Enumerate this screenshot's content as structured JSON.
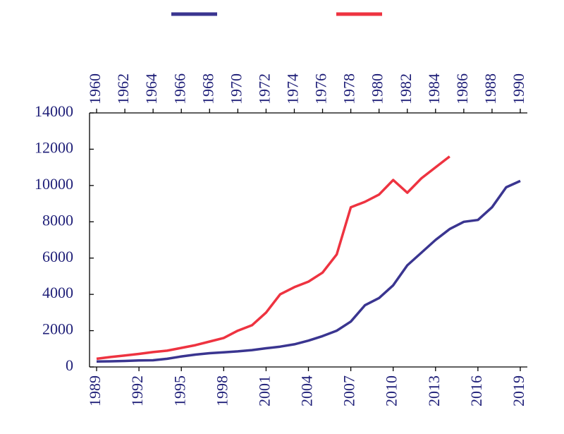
{
  "chart_data": {
    "type": "line",
    "xlim": [
      1988.5,
      2019.5
    ],
    "xticks": [
      1989,
      1992,
      1995,
      1998,
      2001,
      2004,
      2007,
      2010,
      2013,
      2016,
      2019
    ],
    "x2lim": [
      1959.5,
      1990.5
    ],
    "x2ticks": [
      1960,
      1962,
      1964,
      1966,
      1968,
      1970,
      1972,
      1974,
      1976,
      1978,
      1980,
      1982,
      1984,
      1986,
      1988,
      1990
    ],
    "ylim": [
      0,
      14000
    ],
    "yticks": [
      0,
      2000,
      4000,
      6000,
      8000,
      10000,
      12000,
      14000
    ],
    "series": [
      {
        "color": "#3a3590",
        "axis": "x",
        "x": [
          1989,
          1990,
          1991,
          1992,
          1993,
          1994,
          1995,
          1996,
          1997,
          1998,
          1999,
          2000,
          2001,
          2002,
          2003,
          2004,
          2005,
          2006,
          2007,
          2008,
          2009,
          2010,
          2011,
          2012,
          2013,
          2014,
          2015,
          2016,
          2017,
          2018,
          2019
        ],
        "values": [
          300,
          310,
          330,
          360,
          370,
          450,
          580,
          680,
          760,
          810,
          860,
          930,
          1030,
          1120,
          1250,
          1450,
          1700,
          2000,
          2500,
          3400,
          3800,
          4500,
          5600,
          6300,
          7000,
          7600,
          8000,
          8100,
          8800,
          9900,
          10250
        ]
      },
      {
        "color": "#ee3340",
        "axis": "x2",
        "x": [
          1960,
          1961,
          1962,
          1963,
          1964,
          1965,
          1966,
          1967,
          1968,
          1969,
          1970,
          1971,
          1972,
          1973,
          1974,
          1975,
          1976,
          1977,
          1978,
          1979,
          1980,
          1981,
          1982,
          1983,
          1984,
          1985
        ],
        "values": [
          450,
          550,
          630,
          720,
          820,
          900,
          1050,
          1200,
          1400,
          1600,
          2000,
          2300,
          3000,
          4000,
          4400,
          4700,
          5200,
          6200,
          8800,
          9100,
          9500,
          10300,
          9600,
          10400,
          11000,
          11600
        ]
      }
    ]
  }
}
